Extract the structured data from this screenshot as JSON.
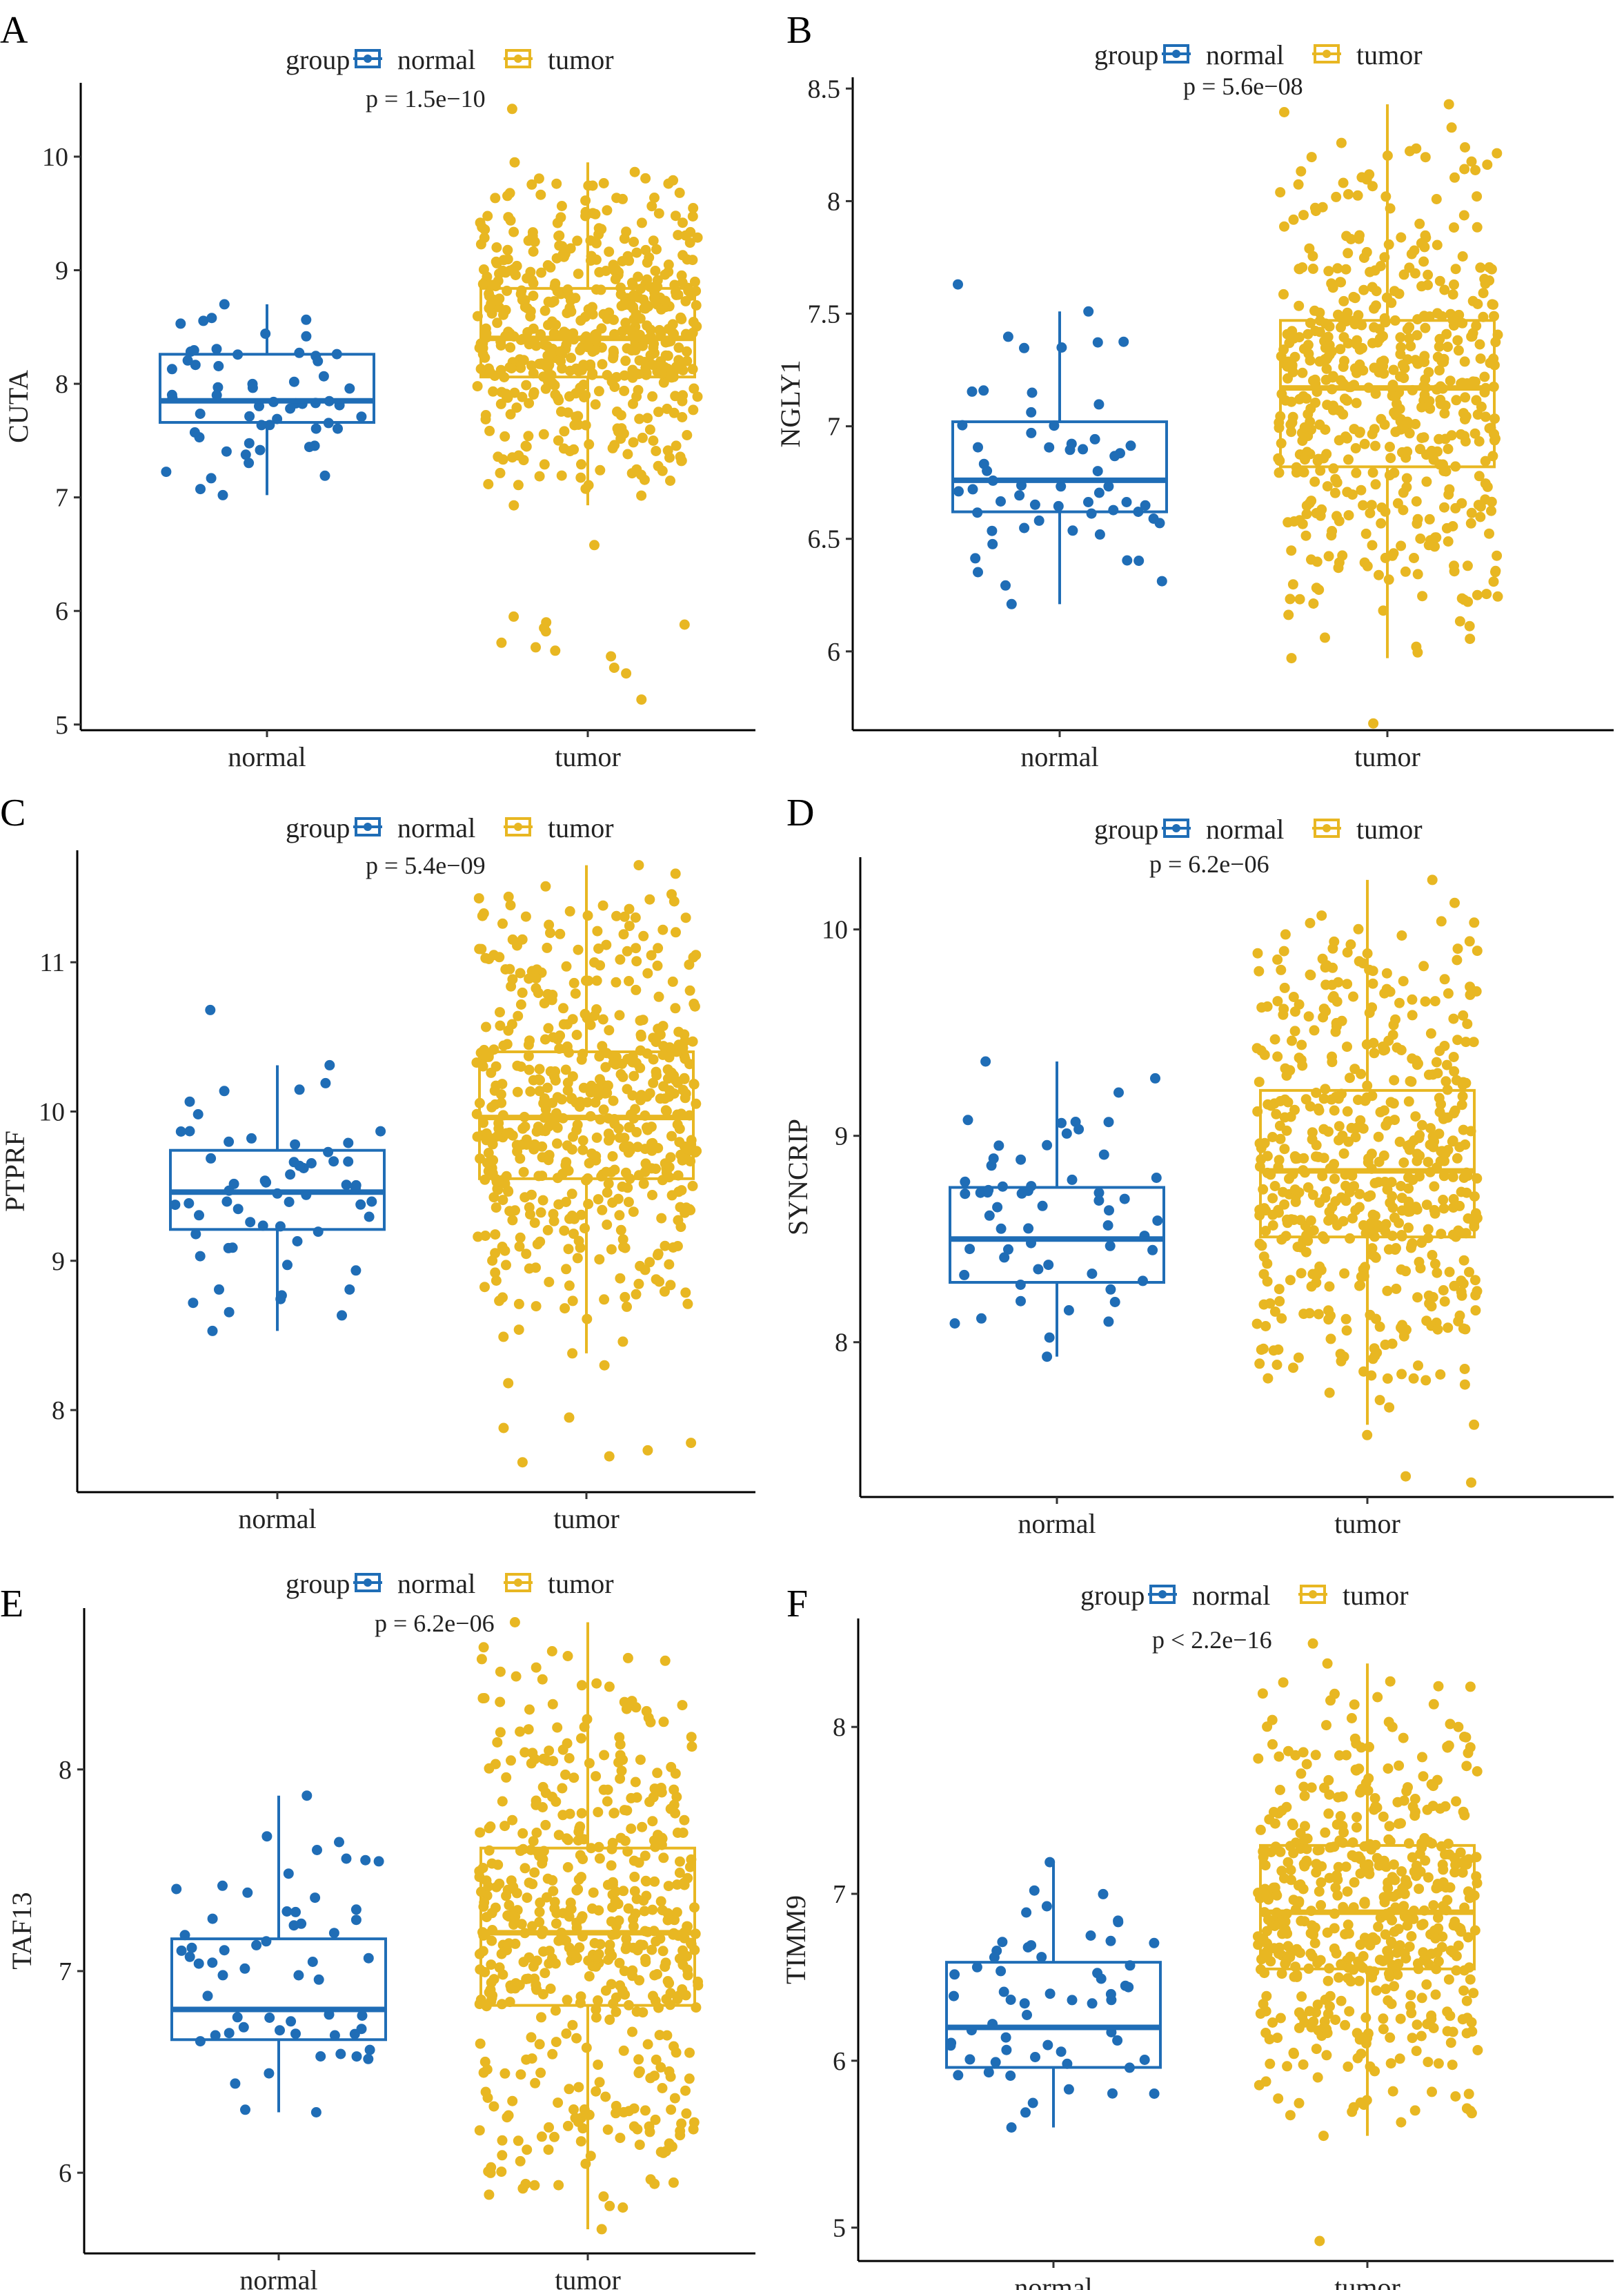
{
  "legend_title": "group",
  "groups": [
    {
      "key": "normal",
      "label": "normal",
      "color": "#1F6DB6"
    },
    {
      "key": "tumor",
      "label": "tumor",
      "color": "#E8B722"
    }
  ],
  "chart_data": [
    {
      "panel": "A",
      "type": "box",
      "ylabel": "CUTA",
      "pvalue": "p = 1.5e−10",
      "categories": [
        "normal",
        "tumor"
      ],
      "ylim": [
        4.95,
        10.65
      ],
      "yticks": [
        5,
        6,
        7,
        8,
        9,
        10
      ],
      "grid": false,
      "legend_position": "top",
      "series": [
        {
          "name": "normal",
          "n": 59,
          "min": 7.02,
          "q1": 7.66,
          "median": 7.85,
          "q3": 8.26,
          "max": 8.7,
          "outliers": []
        },
        {
          "name": "tumor",
          "n": 540,
          "min": 6.93,
          "q1": 8.06,
          "median": 8.4,
          "q3": 8.84,
          "max": 9.95,
          "outliers": [
            10.42,
            6.58,
            5.95,
            5.9,
            5.88,
            5.85,
            5.82,
            5.72,
            5.68,
            5.65,
            5.6,
            5.5,
            5.45,
            5.22
          ]
        }
      ]
    },
    {
      "panel": "B",
      "type": "box",
      "ylabel": "NGLY1",
      "pvalue": "p = 5.6e−08",
      "categories": [
        "normal",
        "tumor"
      ],
      "ylim": [
        5.65,
        8.55
      ],
      "yticks": [
        6.0,
        6.5,
        7.0,
        7.5,
        8.0,
        8.5
      ],
      "grid": false,
      "legend_position": "top",
      "series": [
        {
          "name": "normal",
          "n": 59,
          "min": 6.21,
          "q1": 6.62,
          "median": 6.76,
          "q3": 7.02,
          "max": 7.51,
          "outliers": [
            7.63
          ]
        },
        {
          "name": "tumor",
          "n": 540,
          "min": 5.97,
          "q1": 6.82,
          "median": 7.17,
          "q3": 7.47,
          "max": 8.43,
          "outliers": [
            5.68
          ]
        }
      ]
    },
    {
      "panel": "C",
      "type": "box",
      "ylabel": "PTPRF",
      "pvalue": "p = 5.4e−09",
      "categories": [
        "normal",
        "tumor"
      ],
      "ylim": [
        7.45,
        11.75
      ],
      "yticks": [
        8,
        9,
        10,
        11
      ],
      "grid": false,
      "legend_position": "top",
      "series": [
        {
          "name": "normal",
          "n": 59,
          "min": 8.53,
          "q1": 9.21,
          "median": 9.46,
          "q3": 9.74,
          "max": 10.31,
          "outliers": [
            10.68
          ]
        },
        {
          "name": "tumor",
          "n": 540,
          "min": 8.38,
          "q1": 9.55,
          "median": 9.96,
          "q3": 10.4,
          "max": 11.65,
          "outliers": [
            8.3,
            8.18,
            7.95,
            7.88,
            7.78,
            7.73,
            7.69,
            7.65
          ]
        }
      ]
    },
    {
      "panel": "D",
      "type": "box",
      "ylabel": "SYNCRIP",
      "pvalue": "p = 6.2e−06",
      "categories": [
        "normal",
        "tumor"
      ],
      "ylim": [
        7.25,
        10.35
      ],
      "yticks": [
        8,
        9,
        10
      ],
      "grid": false,
      "legend_position": "top",
      "series": [
        {
          "name": "normal",
          "n": 59,
          "min": 7.93,
          "q1": 8.29,
          "median": 8.5,
          "q3": 8.75,
          "max": 9.36,
          "outliers": []
        },
        {
          "name": "tumor",
          "n": 540,
          "min": 7.6,
          "q1": 8.51,
          "median": 8.83,
          "q3": 9.22,
          "max": 10.24,
          "outliers": [
            7.55,
            7.35,
            7.32
          ]
        }
      ]
    },
    {
      "panel": "E",
      "type": "box",
      "ylabel": "TAF13",
      "pvalue": "p = 6.2e−06",
      "categories": [
        "normal",
        "tumor"
      ],
      "ylim": [
        5.6,
        8.8
      ],
      "yticks": [
        6,
        7,
        8
      ],
      "grid": false,
      "legend_position": "top",
      "series": [
        {
          "name": "normal",
          "n": 59,
          "min": 6.3,
          "q1": 6.66,
          "median": 6.81,
          "q3": 7.16,
          "max": 7.87,
          "outliers": []
        },
        {
          "name": "tumor",
          "n": 540,
          "min": 5.72,
          "q1": 6.83,
          "median": 7.19,
          "q3": 7.61,
          "max": 8.73,
          "outliers": []
        }
      ]
    },
    {
      "panel": "F",
      "type": "box",
      "ylabel": "TIMM9",
      "pvalue": "p < 2.2e−16",
      "categories": [
        "normal",
        "tumor"
      ],
      "ylim": [
        4.8,
        8.65
      ],
      "yticks": [
        5,
        6,
        7,
        8
      ],
      "grid": false,
      "legend_position": "top",
      "series": [
        {
          "name": "normal",
          "n": 59,
          "min": 5.6,
          "q1": 5.96,
          "median": 6.2,
          "q3": 6.59,
          "max": 7.19,
          "outliers": []
        },
        {
          "name": "tumor",
          "n": 540,
          "min": 5.55,
          "q1": 6.55,
          "median": 6.89,
          "q3": 7.29,
          "max": 8.38,
          "outliers": [
            8.5,
            4.92
          ]
        }
      ]
    }
  ]
}
